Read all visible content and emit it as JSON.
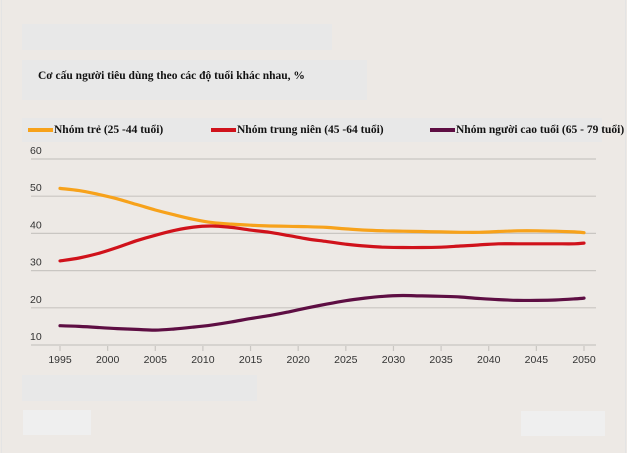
{
  "chart_data": {
    "type": "line",
    "title": "Cơ cấu người tiêu dùng theo các độ tuổi khác nhau, %",
    "xlabel": "",
    "ylabel": "",
    "xlim": [
      1995,
      2050
    ],
    "ylim": [
      10,
      60
    ],
    "grid": true,
    "legend_position": "top",
    "x_ticks": [
      1995,
      2000,
      2005,
      2010,
      2015,
      2020,
      2025,
      2030,
      2035,
      2040,
      2045,
      2050
    ],
    "y_ticks": [
      60,
      50,
      40,
      30,
      20,
      10
    ],
    "x": [
      1995,
      1997,
      1999,
      2001,
      2003,
      2005,
      2007,
      2009,
      2011,
      2013,
      2015,
      2017,
      2019,
      2021,
      2023,
      2025,
      2027,
      2029,
      2031,
      2033,
      2035,
      2037,
      2039,
      2041,
      2043,
      2045,
      2047,
      2049,
      2050
    ],
    "series": [
      {
        "name": "Nhóm trẻ (25 -44 tuổi)",
        "color": "#f7a21b",
        "values": [
          52.1,
          51.5,
          50.5,
          49.3,
          47.8,
          46.3,
          45.0,
          43.8,
          42.9,
          42.5,
          42.2,
          42.0,
          41.9,
          41.8,
          41.6,
          41.2,
          40.9,
          40.7,
          40.6,
          40.5,
          40.4,
          40.3,
          40.3,
          40.5,
          40.7,
          40.7,
          40.6,
          40.4,
          40.2
        ]
      },
      {
        "name": "Nhóm trung niên (45 -64 tuổi)",
        "color": "#d0121b",
        "values": [
          32.6,
          33.4,
          34.6,
          36.2,
          38.0,
          39.5,
          40.8,
          41.7,
          42.0,
          41.6,
          40.9,
          40.3,
          39.4,
          38.5,
          37.8,
          37.1,
          36.6,
          36.3,
          36.2,
          36.2,
          36.3,
          36.6,
          36.9,
          37.2,
          37.2,
          37.2,
          37.2,
          37.2,
          37.4
        ]
      },
      {
        "name": "Nhóm người cao tuổi (65 - 79 tuổi)",
        "color": "#5e0e43",
        "values": [
          15.2,
          15.0,
          14.7,
          14.4,
          14.2,
          14.0,
          14.3,
          14.8,
          15.4,
          16.2,
          17.1,
          17.9,
          18.9,
          20.0,
          21.0,
          21.9,
          22.6,
          23.1,
          23.3,
          23.2,
          23.1,
          22.9,
          22.5,
          22.2,
          22.0,
          22.0,
          22.1,
          22.4,
          22.6
        ]
      }
    ]
  }
}
